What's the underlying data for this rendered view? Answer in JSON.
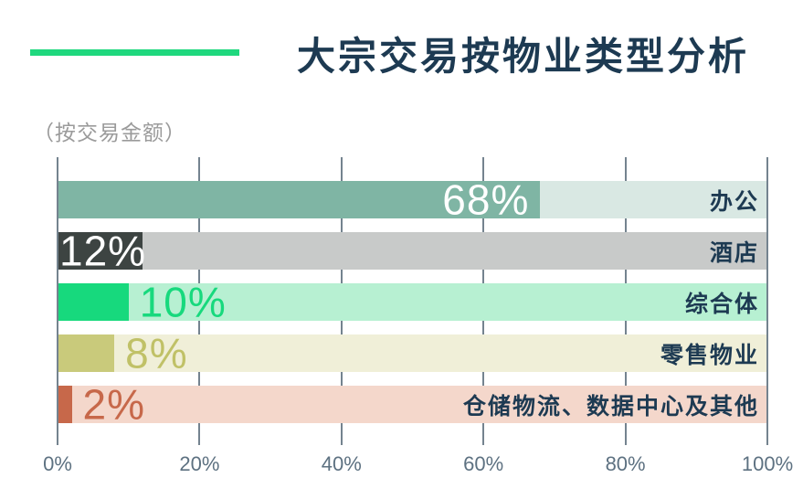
{
  "header": {
    "title": "大宗交易按物业类型分析"
  },
  "subtitle": "（按交易金额）",
  "colors": {
    "accent": "#1fd87e",
    "title_text": "#1d3a52",
    "subtitle_text": "#9b9b9b",
    "gridline": "#74838f",
    "tick_text": "#5d7181",
    "category_text": "#1d3a52"
  },
  "chart_data": {
    "type": "bar",
    "orientation": "horizontal",
    "title": "大宗交易按物业类型分析",
    "subtitle": "（按交易金额）",
    "categories": [
      "办公",
      "酒店",
      "综合体",
      "零售物业",
      "仓储物流、数据中心及其他"
    ],
    "values": [
      68,
      12,
      10,
      8,
      2
    ],
    "unit": "%",
    "xlim": [
      0,
      100
    ],
    "x_ticks": [
      "0%",
      "20%",
      "40%",
      "60%",
      "80%",
      "100%"
    ],
    "grid": true,
    "legend": false,
    "bars": [
      {
        "category": "办公",
        "value": 68,
        "label": "68%",
        "solid_color": "#7fb5a4",
        "track_color": "#d9e8e3",
        "label_color": "#ffffff",
        "label_mode": "inside-end"
      },
      {
        "category": "酒店",
        "value": 12,
        "label": "12%",
        "solid_color": "#3d4442",
        "track_color": "#c8cac9",
        "label_color": "#ffffff",
        "label_mode": "start"
      },
      {
        "category": "综合体",
        "value": 10,
        "label": "10%",
        "solid_color": "#17d97d",
        "track_color": "#b7f0d2",
        "label_color": "#17d97d",
        "label_mode": "after"
      },
      {
        "category": "零售物业",
        "value": 8,
        "label": "8%",
        "solid_color": "#c9ca7b",
        "track_color": "#f0efd8",
        "label_color": "#c0c167",
        "label_mode": "after"
      },
      {
        "category": "仓储物流、数据中心及其他",
        "value": 2,
        "label": "2%",
        "solid_color": "#c7684a",
        "track_color": "#f4d7cb",
        "label_color": "#c7684a",
        "label_mode": "after"
      }
    ]
  }
}
